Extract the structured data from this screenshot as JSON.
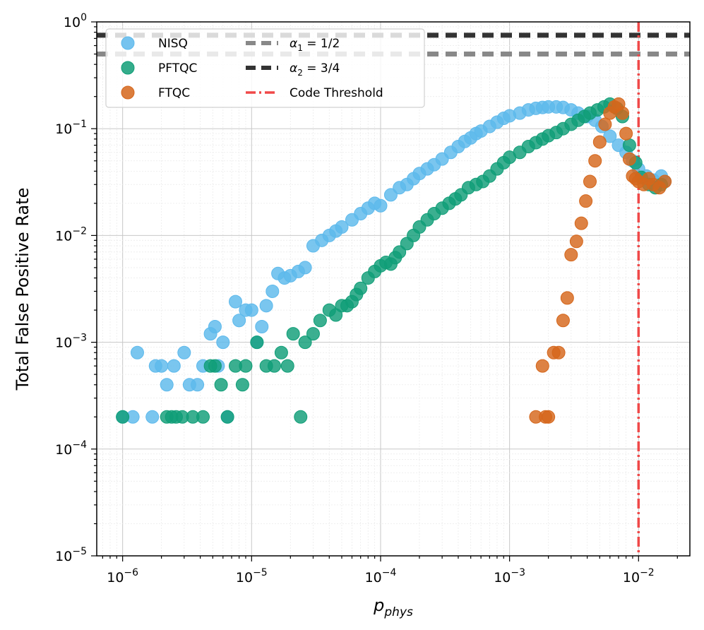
{
  "chart_data": {
    "type": "scatter",
    "title": "",
    "xlabel": "p_phys",
    "ylabel": "Total False Positive Rate",
    "xscale": "log",
    "yscale": "log",
    "xlim": [
      6.3e-07,
      0.025
    ],
    "ylim": [
      1e-05,
      1
    ],
    "grid": true,
    "legend_position": "top-left",
    "x_ticks": [
      {
        "value": 1e-06,
        "base": "10",
        "exp": "−6"
      },
      {
        "value": 1e-05,
        "base": "10",
        "exp": "−5"
      },
      {
        "value": 0.0001,
        "base": "10",
        "exp": "−4"
      },
      {
        "value": 0.001,
        "base": "10",
        "exp": "−3"
      },
      {
        "value": 0.01,
        "base": "10",
        "exp": "−2"
      }
    ],
    "y_ticks": [
      {
        "value": 1e-05,
        "base": "10",
        "exp": "−5"
      },
      {
        "value": 0.0001,
        "base": "10",
        "exp": "−4"
      },
      {
        "value": 0.001,
        "base": "10",
        "exp": "−3"
      },
      {
        "value": 0.01,
        "base": "10",
        "exp": "−2"
      },
      {
        "value": 0.1,
        "base": "10",
        "exp": "−1"
      },
      {
        "value": 1,
        "base": "10",
        "exp": "0"
      }
    ],
    "reference_lines": [
      {
        "name": "α1 = 1/2",
        "orientation": "horizontal",
        "value": 0.5,
        "color": "#888888",
        "style": "dashed"
      },
      {
        "name": "α2 = 3/4",
        "orientation": "horizontal",
        "value": 0.75,
        "color": "#333333",
        "style": "dashed"
      },
      {
        "name": "Code Threshold",
        "orientation": "vertical",
        "value": 0.01,
        "color": "#f04848",
        "style": "dashdot"
      }
    ],
    "series": [
      {
        "name": "NISQ",
        "color": "#5db9ec",
        "x": [
          1e-06,
          1.2e-06,
          1.3e-06,
          1.7e-06,
          1.8e-06,
          2e-06,
          2.2e-06,
          2.5e-06,
          3e-06,
          3.3e-06,
          3.8e-06,
          4.2e-06,
          4.8e-06,
          5.2e-06,
          5.5e-06,
          6e-06,
          6.5e-06,
          7.5e-06,
          8e-06,
          9e-06,
          1e-05,
          1.1e-05,
          1.2e-05,
          1.3e-05,
          1.45e-05,
          1.6e-05,
          1.8e-05,
          2e-05,
          2.3e-05,
          2.6e-05,
          3e-05,
          3.5e-05,
          4e-05,
          4.5e-05,
          5e-05,
          6e-05,
          7e-05,
          8e-05,
          9e-05,
          0.0001,
          0.00012,
          0.00014,
          0.00016,
          0.00018,
          0.0002,
          0.00023,
          0.00026,
          0.0003,
          0.00035,
          0.0004,
          0.00045,
          0.0005,
          0.00055,
          0.0006,
          0.0007,
          0.0008,
          0.0009,
          0.001,
          0.0012,
          0.0014,
          0.0016,
          0.0018,
          0.002,
          0.0023,
          0.0026,
          0.003,
          0.0034,
          0.004,
          0.0046,
          0.0052,
          0.006,
          0.007,
          0.008,
          0.009,
          0.01,
          0.0115,
          0.013,
          0.015,
          0.016
        ],
        "y": [
          0.0002,
          0.0002,
          0.0008,
          0.0002,
          0.0006,
          0.0006,
          0.0004,
          0.0006,
          0.0008,
          0.0004,
          0.0004,
          0.0006,
          0.0012,
          0.0014,
          0.0006,
          0.001,
          0.0002,
          0.0024,
          0.0016,
          0.002,
          0.002,
          0.001,
          0.0014,
          0.0022,
          0.003,
          0.0044,
          0.004,
          0.0042,
          0.0046,
          0.005,
          0.008,
          0.009,
          0.01,
          0.011,
          0.012,
          0.014,
          0.016,
          0.018,
          0.02,
          0.019,
          0.024,
          0.028,
          0.03,
          0.034,
          0.038,
          0.042,
          0.046,
          0.052,
          0.06,
          0.068,
          0.076,
          0.082,
          0.09,
          0.095,
          0.105,
          0.115,
          0.125,
          0.132,
          0.14,
          0.15,
          0.155,
          0.158,
          0.16,
          0.16,
          0.158,
          0.15,
          0.14,
          0.13,
          0.12,
          0.105,
          0.085,
          0.07,
          0.06,
          0.05,
          0.042,
          0.036,
          0.033,
          0.036,
          0.032
        ]
      },
      {
        "name": "PFTQC",
        "color": "#109e77",
        "x": [
          1e-06,
          2.2e-06,
          2.4e-06,
          2.6e-06,
          2.9e-06,
          3.5e-06,
          4.2e-06,
          4.8e-06,
          5.2e-06,
          5.8e-06,
          6.5e-06,
          7.5e-06,
          8.5e-06,
          9e-06,
          1.1e-05,
          1.3e-05,
          1.5e-05,
          1.7e-05,
          1.9e-05,
          2.1e-05,
          2.4e-05,
          2.6e-05,
          3e-05,
          3.4e-05,
          4e-05,
          4.5e-05,
          5e-05,
          5.5e-05,
          6e-05,
          6.5e-05,
          7e-05,
          8e-05,
          9e-05,
          0.0001,
          0.00011,
          0.00012,
          0.00013,
          0.00014,
          0.00016,
          0.00018,
          0.0002,
          0.00023,
          0.00026,
          0.0003,
          0.00034,
          0.00038,
          0.00042,
          0.00048,
          0.00055,
          0.00062,
          0.0007,
          0.0008,
          0.0009,
          0.001,
          0.0012,
          0.0014,
          0.0016,
          0.0018,
          0.002,
          0.0023,
          0.0026,
          0.003,
          0.0034,
          0.0038,
          0.0042,
          0.0048,
          0.0054,
          0.006,
          0.0068,
          0.0075,
          0.0085,
          0.0095,
          0.0105,
          0.012,
          0.0135,
          0.015
        ],
        "y": [
          0.0002,
          0.0002,
          0.0002,
          0.0002,
          0.0002,
          0.0002,
          0.0002,
          0.0006,
          0.0006,
          0.0004,
          0.0002,
          0.0006,
          0.0004,
          0.0006,
          0.001,
          0.0006,
          0.0006,
          0.0008,
          0.0006,
          0.0012,
          0.0002,
          0.001,
          0.0012,
          0.0016,
          0.002,
          0.0018,
          0.0022,
          0.0022,
          0.0024,
          0.0028,
          0.0032,
          0.004,
          0.0046,
          0.0052,
          0.0056,
          0.0054,
          0.0062,
          0.007,
          0.0084,
          0.01,
          0.012,
          0.014,
          0.016,
          0.018,
          0.02,
          0.022,
          0.024,
          0.028,
          0.03,
          0.032,
          0.036,
          0.042,
          0.048,
          0.054,
          0.06,
          0.068,
          0.074,
          0.08,
          0.086,
          0.092,
          0.1,
          0.11,
          0.12,
          0.13,
          0.14,
          0.15,
          0.16,
          0.17,
          0.155,
          0.13,
          0.07,
          0.048,
          0.035,
          0.03,
          0.028,
          0.03
        ]
      },
      {
        "name": "FTQC",
        "color": "#d5661b",
        "x": [
          0.0016,
          0.0018,
          0.0019,
          0.002,
          0.0022,
          0.0024,
          0.0026,
          0.0028,
          0.003,
          0.0033,
          0.0036,
          0.0039,
          0.0042,
          0.0046,
          0.005,
          0.0055,
          0.006,
          0.0065,
          0.007,
          0.0075,
          0.008,
          0.0085,
          0.009,
          0.0095,
          0.01,
          0.011,
          0.012,
          0.013,
          0.0145,
          0.016
        ],
        "y": [
          0.0002,
          0.0006,
          0.0002,
          0.0002,
          0.0008,
          0.0008,
          0.0016,
          0.0026,
          0.0066,
          0.0088,
          0.013,
          0.021,
          0.032,
          0.05,
          0.075,
          0.11,
          0.14,
          0.16,
          0.17,
          0.14,
          0.09,
          0.052,
          0.036,
          0.034,
          0.032,
          0.03,
          0.034,
          0.03,
          0.028,
          0.032
        ]
      }
    ]
  }
}
